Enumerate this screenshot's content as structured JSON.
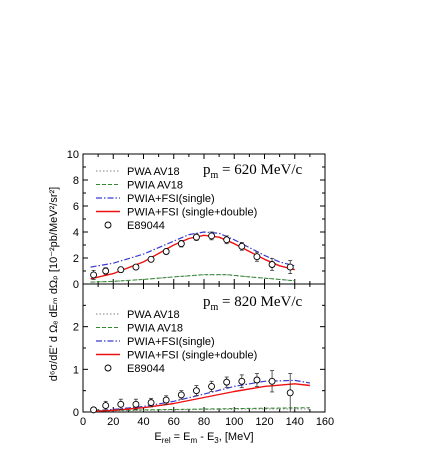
{
  "chart_data": [
    {
      "type": "line",
      "annotation": {
        "main": "p",
        "sub": "m",
        "rest": " = 620 MeV/c"
      },
      "xlim": [
        0,
        160
      ],
      "ylim": [
        0,
        10
      ],
      "xticks": [
        0,
        20,
        40,
        60,
        80,
        100,
        120,
        140,
        160
      ],
      "yticks": [
        0,
        2,
        4,
        6,
        8,
        10
      ],
      "ytick_labels": [
        "0",
        "2",
        "4",
        "6",
        "8",
        "10"
      ],
      "legend": [
        {
          "label": "PWA AV18",
          "style": "dotted-gray"
        },
        {
          "label": "PWIA AV18",
          "style": "dashed-green"
        },
        {
          "label": "PWIA+FSI(single)",
          "style": "dashdot-blue"
        },
        {
          "label": "PWIA+FSI (single+double)",
          "style": "solid-red"
        },
        {
          "label": "E89044",
          "style": "circle"
        }
      ],
      "series": [
        {
          "name": "PWA AV18",
          "style": "dotted-gray",
          "x": [
            5,
            20,
            40,
            60,
            80,
            95,
            110,
            125,
            140
          ],
          "y": [
            0.15,
            0.2,
            0.35,
            0.55,
            0.7,
            0.7,
            0.55,
            0.4,
            0.25
          ]
        },
        {
          "name": "PWIA AV18",
          "style": "dashed-green",
          "x": [
            5,
            20,
            40,
            60,
            80,
            95,
            110,
            125,
            140
          ],
          "y": [
            0.15,
            0.2,
            0.35,
            0.55,
            0.72,
            0.72,
            0.55,
            0.4,
            0.25
          ]
        },
        {
          "name": "PWIA+FSI(single)",
          "style": "dashdot-blue",
          "x": [
            5,
            20,
            40,
            60,
            70,
            80,
            90,
            100,
            110,
            120,
            130,
            140
          ],
          "y": [
            1.3,
            1.6,
            2.3,
            3.3,
            3.8,
            4.0,
            3.9,
            3.4,
            2.8,
            2.2,
            1.7,
            1.4
          ]
        },
        {
          "name": "PWIA+FSI (single+double)",
          "style": "solid-red",
          "x": [
            5,
            20,
            40,
            60,
            70,
            80,
            90,
            100,
            110,
            120,
            130,
            140
          ],
          "y": [
            0.4,
            0.8,
            1.7,
            3.0,
            3.5,
            3.75,
            3.6,
            3.1,
            2.5,
            1.9,
            1.4,
            1.1
          ]
        },
        {
          "name": "E89044",
          "style": "circle",
          "x": [
            7,
            15,
            25,
            35,
            45,
            55,
            65,
            75,
            85,
            95,
            105,
            115,
            125,
            137
          ],
          "y": [
            0.7,
            1.0,
            1.1,
            1.3,
            1.9,
            2.5,
            3.1,
            3.6,
            3.7,
            3.4,
            2.9,
            2.1,
            1.5,
            1.3
          ],
          "err": [
            0.35,
            0.25,
            0.2,
            0.2,
            0.2,
            0.2,
            0.25,
            0.25,
            0.3,
            0.3,
            0.3,
            0.35,
            0.45,
            0.5
          ]
        }
      ]
    },
    {
      "type": "line",
      "annotation": {
        "main": "p",
        "sub": "m",
        "rest": " = 820 MeV/c"
      },
      "xlim": [
        0,
        160
      ],
      "ylim": [
        0,
        3
      ],
      "xticks": [
        0,
        20,
        40,
        60,
        80,
        100,
        120,
        140,
        160
      ],
      "xtick_labels": [
        "0",
        "20",
        "40",
        "60",
        "80",
        "100",
        "120",
        "140",
        "160"
      ],
      "yticks": [
        0,
        1,
        2
      ],
      "ytick_labels": [
        "0",
        "1",
        "2"
      ],
      "xlabel": {
        "main": "E",
        "sub": "rel",
        "rest": " = E",
        "sub2": "m",
        "rest2": " - E",
        "sub3": "3",
        "rest3": ", [MeV]"
      },
      "ylabel": "d⁶σ/dE' d Ωₑ dEₘ dΩₚ [10⁻²pb/MeV²/sr²]",
      "legend": [
        {
          "label": "PWA AV18",
          "style": "dotted-gray"
        },
        {
          "label": "PWIA AV18",
          "style": "dashed-green"
        },
        {
          "label": "PWIA+FSI(single)",
          "style": "dashdot-blue"
        },
        {
          "label": "PWIA+FSI (single+double)",
          "style": "solid-red"
        },
        {
          "label": "E89044",
          "style": "circle"
        }
      ],
      "series": [
        {
          "name": "PWA AV18",
          "style": "dotted-gray",
          "x": [
            5,
            40,
            80,
            120,
            150
          ],
          "y": [
            0.02,
            0.04,
            0.06,
            0.07,
            0.07
          ]
        },
        {
          "name": "PWIA AV18",
          "style": "dashed-green",
          "x": [
            5,
            40,
            80,
            120,
            150
          ],
          "y": [
            0.03,
            0.05,
            0.07,
            0.09,
            0.1
          ]
        },
        {
          "name": "PWIA+FSI(single)",
          "style": "dashdot-blue",
          "x": [
            5,
            20,
            40,
            60,
            80,
            100,
            120,
            140,
            150
          ],
          "y": [
            0.02,
            0.06,
            0.13,
            0.25,
            0.42,
            0.6,
            0.72,
            0.74,
            0.68
          ]
        },
        {
          "name": "PWIA+FSI (single+double)",
          "style": "solid-red",
          "x": [
            5,
            20,
            40,
            60,
            80,
            100,
            120,
            140,
            150
          ],
          "y": [
            0.01,
            0.04,
            0.1,
            0.2,
            0.34,
            0.48,
            0.6,
            0.66,
            0.62
          ]
        },
        {
          "name": "E89044",
          "style": "circle",
          "x": [
            7,
            15,
            25,
            35,
            45,
            55,
            65,
            75,
            85,
            95,
            105,
            115,
            125,
            137
          ],
          "y": [
            0.05,
            0.15,
            0.18,
            0.18,
            0.22,
            0.28,
            0.4,
            0.5,
            0.6,
            0.7,
            0.72,
            0.75,
            0.72,
            0.45
          ],
          "err": [
            0.05,
            0.1,
            0.12,
            0.12,
            0.1,
            0.1,
            0.1,
            0.12,
            0.12,
            0.12,
            0.15,
            0.15,
            0.25,
            0.45
          ]
        }
      ]
    }
  ]
}
